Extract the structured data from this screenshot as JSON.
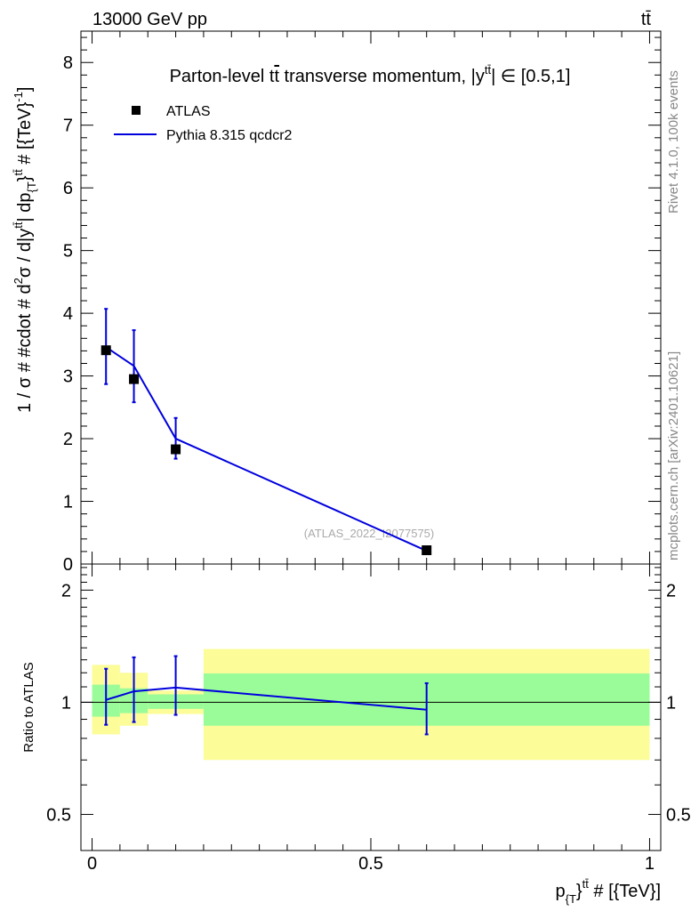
{
  "header": {
    "left": "13000 GeV pp",
    "right": "tt̄"
  },
  "side_text": {
    "rivet": "Rivet 4.1.0,  100k events",
    "site": "mcplots.cern.ch [arXiv:2401.10621]"
  },
  "chart_data": [
    {
      "type": "line",
      "panel": "main",
      "title": "Parton-level tt̄ transverse momentum, |y^{tt̄}| ∈ [0.5,1]",
      "title_parts": {
        "lead": "Parton-level t",
        "bar_t": "t",
        "mid": " transverse momentum, |y",
        "sup": "tt̄",
        "tail": "| ∈ [0.5,1]"
      },
      "ylabel": "1 / σ # #cdot # d²σ / d|y^{tt̄}| dp_{T}^{tt̄} # [{TeV}⁻¹]",
      "ylabel_parts": {
        "p1": "1 / σ # #cdot # d",
        "sup1": "2",
        "p2": "σ / d|y",
        "sup2": "tt̄",
        "p3": "| dp",
        "sub3": "{T",
        "p4": "}",
        "sup4": "tt̄",
        "p5": " # [{TeV}",
        "sup5": "-1",
        "p6": "]"
      },
      "xlim": [
        -0.02,
        1.02
      ],
      "ylim": [
        0,
        8.5
      ],
      "yticks": [
        0,
        1,
        2,
        3,
        4,
        5,
        6,
        7,
        8
      ],
      "ytick_labels": [
        "0",
        "1",
        "2",
        "3",
        "4",
        "5",
        "6",
        "7",
        "8"
      ],
      "watermark": "(ATLAS_2022_I2077575)",
      "legend": {
        "position": "top-left",
        "entries": [
          {
            "label": "ATLAS",
            "marker": "square",
            "color": "#000000"
          },
          {
            "label": "Pythia 8.315 qcdcr2",
            "marker": "line",
            "color": "#0000dd"
          }
        ]
      },
      "series": [
        {
          "name": "ATLAS",
          "x": [
            0.025,
            0.075,
            0.15,
            0.6
          ],
          "y": [
            3.41,
            2.95,
            1.83,
            0.22
          ],
          "color": "#000000"
        },
        {
          "name": "Pythia 8.315 qcdcr2",
          "x": [
            0.025,
            0.075,
            0.15,
            0.6
          ],
          "y": [
            3.46,
            3.16,
            2.0,
            0.21
          ],
          "yerr_low": [
            2.87,
            2.58,
            1.68,
            0.18
          ],
          "yerr_high": [
            4.07,
            3.73,
            2.33,
            0.24
          ],
          "color": "#0000dd"
        }
      ]
    },
    {
      "type": "line",
      "panel": "ratio",
      "ylabel": "Ratio to ATLAS",
      "xlabel": "p_{T}^{tt̄} # [{TeV}]",
      "xlabel_parts": {
        "p": "p",
        "sub": "{T",
        "close": "}",
        "sup": "tt̄",
        "tail": " # [{TeV}]"
      },
      "xlim": [
        -0.02,
        1.02
      ],
      "ylim_log": [
        0.4,
        2.35
      ],
      "xticks": [
        0,
        0.5,
        1
      ],
      "xtick_labels": [
        "0",
        "0.5",
        "1"
      ],
      "yticks": [
        0.5,
        1,
        2
      ],
      "ytick_labels": [
        "0.5",
        "1",
        "2"
      ],
      "bands": [
        {
          "x0": 0.0,
          "x1": 0.05,
          "inner": [
            0.915,
            1.115
          ],
          "outer": [
            0.82,
            1.26
          ]
        },
        {
          "x0": 0.05,
          "x1": 0.1,
          "inner": [
            0.935,
            1.09
          ],
          "outer": [
            0.865,
            1.2
          ]
        },
        {
          "x0": 0.1,
          "x1": 0.2,
          "inner": [
            0.96,
            1.05
          ],
          "outer": [
            0.93,
            1.075
          ]
        },
        {
          "x0": 0.2,
          "x1": 1.0,
          "inner": [
            0.865,
            1.195
          ],
          "outer": [
            0.7,
            1.39
          ]
        }
      ],
      "band_colors": {
        "inner": "#99fc99",
        "outer": "#fcfc99"
      },
      "series": [
        {
          "name": "Pythia 8.315 qcdcr2",
          "x": [
            0.025,
            0.075,
            0.15,
            0.6
          ],
          "y": [
            1.015,
            1.07,
            1.095,
            0.955
          ],
          "yerr_low": [
            0.87,
            0.885,
            0.925,
            0.82
          ],
          "yerr_high": [
            1.23,
            1.32,
            1.33,
            1.125
          ],
          "color": "#0000dd"
        }
      ]
    }
  ]
}
